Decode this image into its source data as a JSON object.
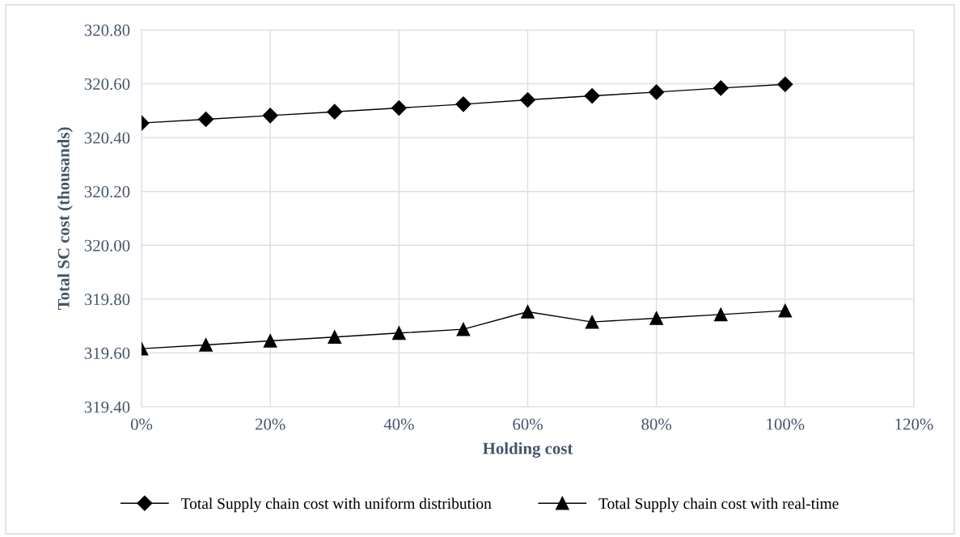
{
  "chart_data": {
    "type": "line",
    "xlabel": "Holding cost",
    "ylabel": "Total SC cost (thousands)",
    "x": [
      0,
      0.1,
      0.2,
      0.3,
      0.4,
      0.5,
      0.6,
      0.7,
      0.8,
      0.9,
      1.0
    ],
    "series": [
      {
        "name": "Total Supply chain cost with uniform distribution",
        "color": "#000000",
        "marker": "diamond",
        "values": [
          320.454,
          320.468,
          320.482,
          320.496,
          320.51,
          320.524,
          320.54,
          320.555,
          320.569,
          320.584,
          320.598
        ]
      },
      {
        "name": "Total Supply chain cost with real-time",
        "color": "#000000",
        "marker": "triangle",
        "values": [
          319.616,
          319.63,
          319.645,
          319.659,
          319.674,
          319.688,
          319.753,
          319.715,
          319.729,
          319.743,
          319.757
        ]
      }
    ],
    "xlim": [
      0,
      1.2
    ],
    "xticks": [
      {
        "value": 0,
        "label": "0%"
      },
      {
        "value": 0.2,
        "label": "20%"
      },
      {
        "value": 0.4,
        "label": "40%"
      },
      {
        "value": 0.6,
        "label": "60%"
      },
      {
        "value": 0.8,
        "label": "80%"
      },
      {
        "value": 1.0,
        "label": "100%"
      },
      {
        "value": 1.2,
        "label": "120%"
      }
    ],
    "ylim": [
      319.4,
      320.8
    ],
    "yticks": [
      {
        "value": 319.4,
        "label": "319.40"
      },
      {
        "value": 319.6,
        "label": "319.60"
      },
      {
        "value": 319.8,
        "label": "319.80"
      },
      {
        "value": 320.0,
        "label": "320.00"
      },
      {
        "value": 320.2,
        "label": "320.20"
      },
      {
        "value": 320.4,
        "label": "320.40"
      },
      {
        "value": 320.6,
        "label": "320.60"
      },
      {
        "value": 320.8,
        "label": "320.80"
      }
    ],
    "grid": true,
    "legend": "bottom",
    "line_style": "solid"
  }
}
